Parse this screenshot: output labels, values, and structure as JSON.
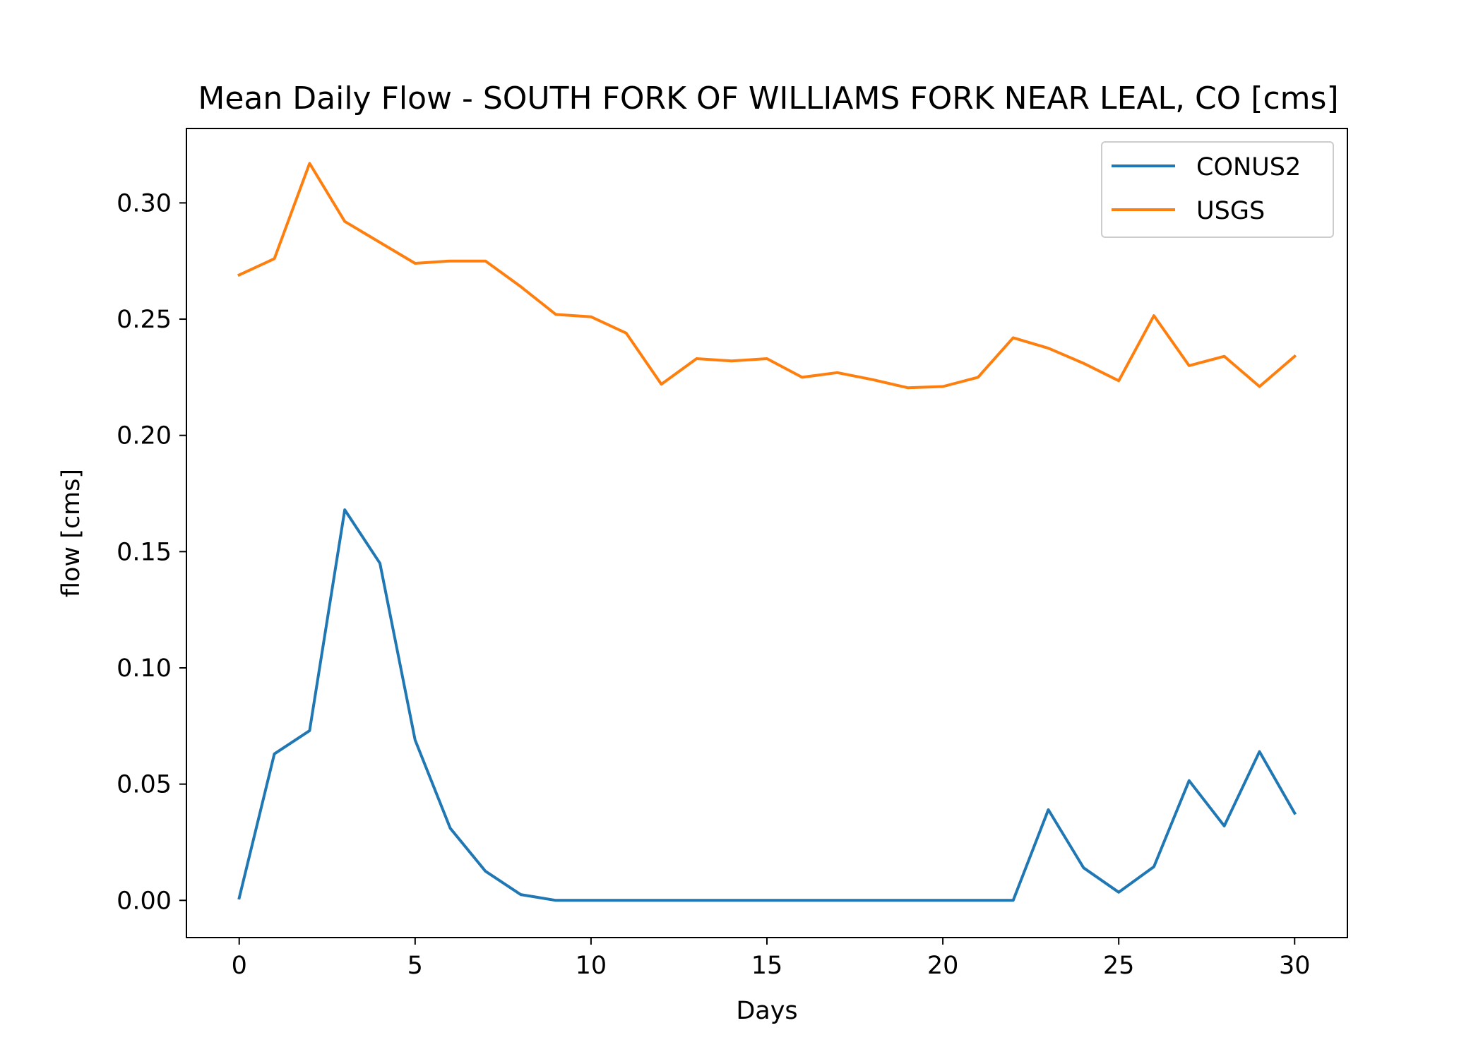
{
  "chart_data": {
    "type": "line",
    "title": "Mean Daily Flow - SOUTH FORK OF WILLIAMS FORK NEAR LEAL, CO [cms]",
    "xlabel": "Days",
    "ylabel": "flow [cms]",
    "xlim": [
      -1.5,
      31.5
    ],
    "ylim": [
      -0.016,
      0.332
    ],
    "xticks": [
      0,
      5,
      10,
      15,
      20,
      25,
      30
    ],
    "yticks": [
      0.0,
      0.05,
      0.1,
      0.15,
      0.2,
      0.25,
      0.3
    ],
    "ytick_labels": [
      "0.00",
      "0.05",
      "0.10",
      "0.15",
      "0.20",
      "0.25",
      "0.30"
    ],
    "grid": false,
    "legend_position": "top-right",
    "x": [
      0,
      1,
      2,
      3,
      4,
      5,
      6,
      7,
      8,
      9,
      10,
      11,
      12,
      13,
      14,
      15,
      16,
      17,
      18,
      19,
      20,
      21,
      22,
      23,
      24,
      25,
      26,
      27,
      28,
      29,
      30
    ],
    "series": [
      {
        "name": "CONUS2",
        "color": "#1f77b4",
        "values": [
          0.001,
          0.063,
          0.073,
          0.168,
          0.145,
          0.069,
          0.031,
          0.0125,
          0.0025,
          0.0,
          0.0,
          0.0,
          0.0,
          0.0,
          0.0,
          0.0,
          0.0,
          0.0,
          0.0,
          0.0,
          0.0,
          0.0,
          0.0,
          0.039,
          0.014,
          0.0035,
          0.0145,
          0.0515,
          0.032,
          0.064,
          0.0375
        ]
      },
      {
        "name": "USGS",
        "color": "#ff7f0e",
        "values": [
          0.269,
          0.276,
          0.317,
          0.292,
          0.283,
          0.274,
          0.275,
          0.275,
          0.264,
          0.252,
          0.251,
          0.244,
          0.222,
          0.233,
          0.232,
          0.233,
          0.225,
          0.227,
          0.224,
          0.2205,
          0.221,
          0.225,
          0.242,
          0.2375,
          0.231,
          0.2235,
          0.2515,
          0.23,
          0.234,
          0.221,
          0.234
        ]
      }
    ]
  }
}
